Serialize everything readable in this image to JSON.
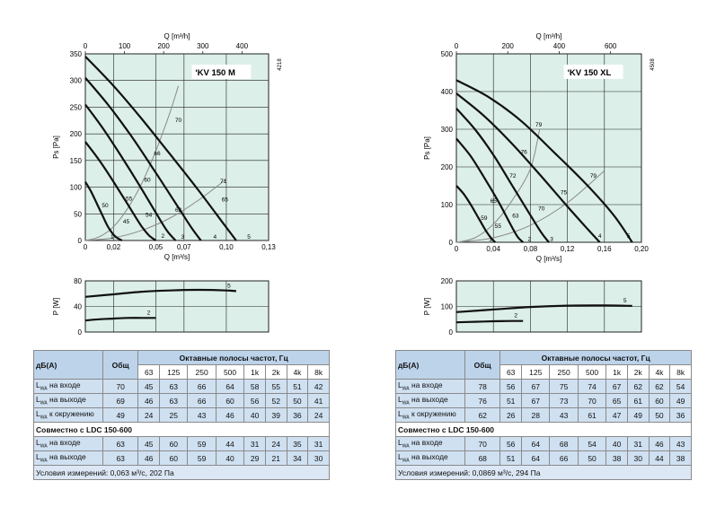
{
  "charts": [
    {
      "id": "left",
      "model": "KV 150 M",
      "code": "4218",
      "chart_data": {
        "type": "line",
        "title": "KV 150 M",
        "xlabel": "Q [m³/s]",
        "ylabel": "Ps [Pa]",
        "x2label": "Q [m³/h]",
        "xlim": [
          0,
          0.13
        ],
        "ylim": [
          0,
          350
        ],
        "xticks": [
          0,
          0.02,
          0.05,
          0.07,
          0.1,
          0.13
        ],
        "xtick_labels": [
          "0",
          "0,02",
          "0,05",
          "0,07",
          "0,10",
          "0,13"
        ],
        "x2ticks": [
          0,
          100,
          200,
          300,
          400
        ],
        "yticks": [
          0,
          50,
          100,
          150,
          200,
          250,
          300,
          350
        ],
        "series": [
          {
            "name": "curve-1",
            "x": [
              0,
              0.004,
              0.008,
              0.012,
              0.016,
              0.021,
              0.026
            ],
            "y": [
              110,
              92,
              70,
              48,
              26,
              8,
              0
            ]
          },
          {
            "name": "curve-2",
            "x": [
              0,
              0.01,
              0.02,
              0.03,
              0.039,
              0.045,
              0.05
            ],
            "y": [
              185,
              150,
              110,
              68,
              30,
              10,
              0
            ]
          },
          {
            "name": "curve-3",
            "x": [
              0,
              0.012,
              0.025,
              0.038,
              0.05,
              0.058,
              0.064
            ],
            "y": [
              255,
              212,
              160,
              105,
              52,
              18,
              0
            ]
          },
          {
            "name": "curve-4",
            "x": [
              0,
              0.016,
              0.032,
              0.048,
              0.064,
              0.075,
              0.082
            ],
            "y": [
              305,
              255,
              198,
              135,
              70,
              25,
              0
            ]
          },
          {
            "name": "curve-5",
            "x": [
              0,
              0.02,
              0.04,
              0.06,
              0.08,
              0.097,
              0.107
            ],
            "y": [
              345,
              290,
              228,
              162,
              95,
              35,
              0
            ]
          }
        ],
        "system_curves": [
          {
            "x": [
              0,
              0.01,
              0.02,
              0.03,
              0.04,
              0.05,
              0.06,
              0.066
            ],
            "y": [
              0,
              7,
              26,
              60,
              107,
              168,
              240,
              290
            ]
          },
          {
            "x": [
              0,
              0.02,
              0.04,
              0.06,
              0.08,
              0.1
            ],
            "y": [
              0,
              5,
              19,
              42,
              75,
              115
            ]
          }
        ],
        "annotations": [
          {
            "text": "70",
            "x": 0.066,
            "y": 222
          },
          {
            "text": "66",
            "x": 0.051,
            "y": 160
          },
          {
            "text": "60",
            "x": 0.044,
            "y": 110
          },
          {
            "text": "55",
            "x": 0.031,
            "y": 75
          },
          {
            "text": "50",
            "x": 0.014,
            "y": 62
          },
          {
            "text": "45",
            "x": 0.029,
            "y": 32
          },
          {
            "text": "54",
            "x": 0.045,
            "y": 45
          },
          {
            "text": "63",
            "x": 0.066,
            "y": 54
          },
          {
            "text": "65",
            "x": 0.099,
            "y": 73
          },
          {
            "text": "71",
            "x": 0.098,
            "y": 108
          },
          {
            "text": "1",
            "x": 0.019,
            "y": 3
          },
          {
            "text": "2",
            "x": 0.055,
            "y": 5
          },
          {
            "text": "3",
            "x": 0.069,
            "y": 3
          },
          {
            "text": "4",
            "x": 0.092,
            "y": 3
          },
          {
            "text": "5",
            "x": 0.116,
            "y": 3
          }
        ]
      },
      "power_chart": {
        "type": "line",
        "ylabel": "P [W]",
        "ylim": [
          0,
          80
        ],
        "yticks": [
          0,
          40,
          80
        ],
        "series": [
          {
            "name": "5",
            "x": [
              0,
              0.02,
              0.04,
              0.06,
              0.08,
              0.1,
              0.107
            ],
            "y": [
              55,
              59,
              63,
              65,
              66,
              65,
              64
            ]
          },
          {
            "name": "2",
            "x": [
              0,
              0.01,
              0.02,
              0.03,
              0.04,
              0.05
            ],
            "y": [
              18,
              20,
              21,
              22,
              22,
              22
            ]
          }
        ]
      },
      "table": {
        "head": [
          "дБ(А)",
          "Общ",
          "Октавные полосы частот, Гц"
        ],
        "bands": [
          "63",
          "125",
          "250",
          "500",
          "1k",
          "2k",
          "4k",
          "8k"
        ],
        "rows": [
          {
            "label": "на входе",
            "sub": "WA",
            "total": "70",
            "vals": [
              "45",
              "63",
              "66",
              "64",
              "58",
              "55",
              "51",
              "42"
            ]
          },
          {
            "label": "на выходе",
            "sub": "WA",
            "total": "69",
            "vals": [
              "46",
              "63",
              "66",
              "60",
              "56",
              "52",
              "50",
              "41"
            ]
          },
          {
            "label": "к окружению",
            "sub": "WA",
            "total": "49",
            "vals": [
              "24",
              "25",
              "43",
              "46",
              "40",
              "39",
              "36",
              "24"
            ]
          }
        ],
        "section": "Совместно с LDC 150-600",
        "rows2": [
          {
            "label": "на входе",
            "sub": "WA",
            "total": "63",
            "vals": [
              "45",
              "60",
              "59",
              "44",
              "31",
              "24",
              "35",
              "31"
            ]
          },
          {
            "label": "на выходе",
            "sub": "WA",
            "total": "63",
            "vals": [
              "46",
              "60",
              "59",
              "40",
              "29",
              "21",
              "34",
              "30"
            ]
          }
        ],
        "note": "Условия измерений: 0,063 м³/с, 202 Па"
      }
    },
    {
      "id": "right",
      "model": "KV 150 XL",
      "code": "4508",
      "chart_data": {
        "type": "line",
        "title": "KV 150 XL",
        "xlabel": "Q [m³/s]",
        "ylabel": "Ps [Pa]",
        "x2label": "Q [m³/h]",
        "xlim": [
          0,
          0.2
        ],
        "ylim": [
          0,
          500
        ],
        "xticks": [
          0,
          0.04,
          0.08,
          0.12,
          0.16,
          0.2
        ],
        "xtick_labels": [
          "0",
          "0,04",
          "0,08",
          "0,12",
          "0,16",
          "0,20"
        ],
        "x2ticks": [
          0,
          200,
          400,
          600
        ],
        "yticks": [
          0,
          100,
          200,
          300,
          400,
          500
        ],
        "series": [
          {
            "name": "curve-1",
            "x": [
              0,
              0.008,
              0.016,
              0.024,
              0.032,
              0.038,
              0.042
            ],
            "y": [
              150,
              128,
              98,
              64,
              30,
              10,
              0
            ]
          },
          {
            "name": "curve-2",
            "x": [
              0,
              0.015,
              0.03,
              0.045,
              0.058,
              0.066,
              0.072
            ],
            "y": [
              275,
              230,
              172,
              110,
              50,
              15,
              0
            ]
          },
          {
            "name": "curve-3",
            "x": [
              0,
              0.02,
              0.04,
              0.06,
              0.08,
              0.092,
              0.1
            ],
            "y": [
              355,
              300,
              232,
              152,
              72,
              25,
              0
            ]
          },
          {
            "name": "curve-4",
            "x": [
              0,
              0.03,
              0.06,
              0.09,
              0.12,
              0.14,
              0.155
            ],
            "y": [
              395,
              335,
              262,
              180,
              95,
              40,
              0
            ]
          },
          {
            "name": "curve-5",
            "x": [
              0,
              0.035,
              0.07,
              0.105,
              0.14,
              0.17,
              0.19
            ],
            "y": [
              430,
              385,
              322,
              240,
              155,
              72,
              0
            ]
          }
        ],
        "system_curves": [
          {
            "x": [
              0,
              0.02,
              0.04,
              0.06,
              0.08,
              0.09
            ],
            "y": [
              0,
              12,
              48,
              110,
              195,
              300
            ]
          },
          {
            "x": [
              0,
              0.04,
              0.08,
              0.12,
              0.16
            ],
            "y": [
              0,
              12,
              45,
              105,
              190
            ]
          }
        ],
        "annotations": [
          {
            "text": "79",
            "x": 0.089,
            "y": 307
          },
          {
            "text": "76",
            "x": 0.073,
            "y": 235
          },
          {
            "text": "72",
            "x": 0.061,
            "y": 172
          },
          {
            "text": "65",
            "x": 0.04,
            "y": 105
          },
          {
            "text": "59",
            "x": 0.03,
            "y": 60
          },
          {
            "text": "55",
            "x": 0.045,
            "y": 38
          },
          {
            "text": "63",
            "x": 0.064,
            "y": 65
          },
          {
            "text": "70",
            "x": 0.092,
            "y": 85
          },
          {
            "text": "75",
            "x": 0.116,
            "y": 127
          },
          {
            "text": "79",
            "x": 0.148,
            "y": 172
          },
          {
            "text": "1",
            "x": 0.037,
            "y": 4
          },
          {
            "text": "2",
            "x": 0.079,
            "y": 4
          },
          {
            "text": "3",
            "x": 0.103,
            "y": 4
          },
          {
            "text": "4",
            "x": 0.155,
            "y": 12
          },
          {
            "text": "5",
            "x": 0.186,
            "y": 12
          }
        ]
      },
      "power_chart": {
        "type": "line",
        "ylabel": "P [W]",
        "ylim": [
          0,
          200
        ],
        "yticks": [
          0,
          100,
          200
        ],
        "series": [
          {
            "name": "5",
            "x": [
              0,
              0.04,
              0.08,
              0.12,
              0.16,
              0.19
            ],
            "y": [
              78,
              88,
              98,
              103,
              104,
              102
            ]
          },
          {
            "name": "2",
            "x": [
              0,
              0.02,
              0.04,
              0.06,
              0.072
            ],
            "y": [
              38,
              40,
              42,
              43,
              43
            ]
          }
        ]
      },
      "table": {
        "head": [
          "дБ(А)",
          "Общ",
          "Октавные полосы частот, Гц"
        ],
        "bands": [
          "63",
          "125",
          "250",
          "500",
          "1k",
          "2k",
          "4k",
          "8k"
        ],
        "rows": [
          {
            "label": "на входе",
            "sub": "WA",
            "total": "78",
            "vals": [
              "56",
              "67",
              "75",
              "74",
              "67",
              "62",
              "62",
              "54"
            ]
          },
          {
            "label": "на выходе",
            "sub": "WA",
            "total": "76",
            "vals": [
              "51",
              "67",
              "73",
              "70",
              "65",
              "61",
              "60",
              "49"
            ]
          },
          {
            "label": "к окружению",
            "sub": "WA",
            "total": "62",
            "vals": [
              "26",
              "28",
              "43",
              "61",
              "47",
              "49",
              "50",
              "36"
            ]
          }
        ],
        "section": "Совместно с LDC 150-600",
        "rows2": [
          {
            "label": "на входе",
            "sub": "WA",
            "total": "70",
            "vals": [
              "56",
              "64",
              "68",
              "54",
              "40",
              "31",
              "46",
              "43"
            ]
          },
          {
            "label": "на выходе",
            "sub": "WA",
            "total": "68",
            "vals": [
              "51",
              "64",
              "66",
              "50",
              "38",
              "30",
              "44",
              "38"
            ]
          }
        ],
        "note": "Условия измерений: 0,0869 м³/с, 294 Па"
      }
    }
  ],
  "colors": {
    "plot_bg": "#dcefe9",
    "grid": "#222222",
    "curve": "#111111",
    "syscurve": "#8a8a8a",
    "table_head": "#bcd3ea",
    "table_band": "#cfe0f1",
    "table_note": "#dbe7f4"
  }
}
